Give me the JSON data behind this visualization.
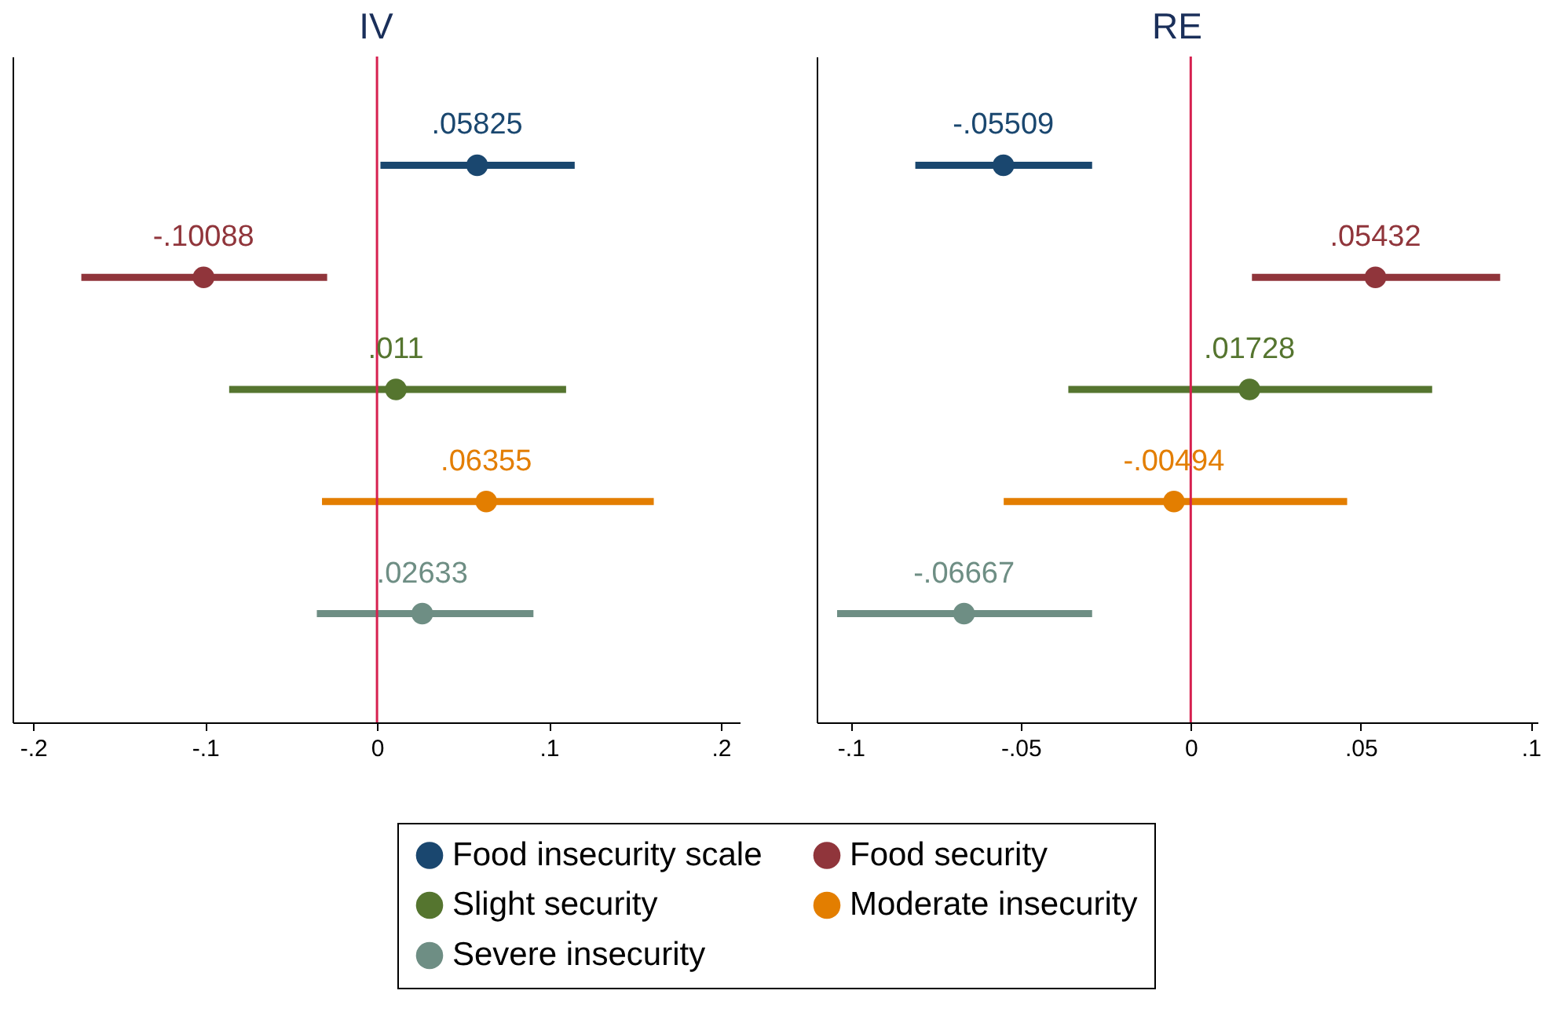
{
  "chart_data": [
    {
      "type": "scatter",
      "title": "IV",
      "orientation": "horizontal",
      "categories": [
        null,
        null,
        null,
        null,
        null
      ],
      "xlim": [
        -0.212,
        0.211
      ],
      "xticks": [
        {
          "value": -0.2,
          "label": "-.2"
        },
        {
          "value": -0.1,
          "label": "-.1"
        },
        0,
        {
          "value": 0.1,
          "label": ".1"
        },
        {
          "value": 0.2,
          "label": ".2"
        }
      ],
      "tick_labels": "x",
      "marker": "circle",
      "legend": "bottom",
      "grid": false,
      "ref_lines": [
        {
          "axis": "x",
          "value": 0,
          "color": "#d6204f"
        }
      ],
      "series": [
        {
          "name": "Food insecurity scale",
          "color": "#1a476f",
          "values": [
            0.05825,
            null,
            null,
            null,
            null
          ],
          "errors": [
            [
              0.002,
              0.115
            ],
            null,
            null,
            null,
            null
          ],
          "value_labels": [
            ".05825",
            null,
            null,
            null,
            null
          ]
        },
        {
          "name": "Food security",
          "color": "#90353b",
          "values": [
            null,
            -0.10088,
            null,
            null,
            null
          ],
          "errors": [
            null,
            [
              -0.172,
              -0.029
            ],
            null,
            null,
            null
          ],
          "value_labels": [
            null,
            "-.10088",
            null,
            null,
            null
          ]
        },
        {
          "name": "Slight security",
          "color": "#55752f",
          "values": [
            null,
            null,
            0.011,
            null,
            null
          ],
          "errors": [
            null,
            null,
            [
              -0.086,
              0.11
            ],
            null,
            null
          ],
          "value_labels": [
            null,
            null,
            ".011",
            null,
            null
          ]
        },
        {
          "name": "Moderate insecurity",
          "color": "#e37e00",
          "values": [
            null,
            null,
            null,
            0.06355,
            null
          ],
          "errors": [
            null,
            null,
            null,
            [
              -0.032,
              0.161
            ],
            null
          ],
          "value_labels": [
            null,
            null,
            null,
            ".06355",
            null
          ]
        },
        {
          "name": "Severe insecurity",
          "color": "#6e8e84",
          "values": [
            null,
            null,
            null,
            null,
            0.02633
          ],
          "errors": [
            null,
            null,
            null,
            null,
            [
              -0.035,
              0.091
            ]
          ],
          "value_labels": [
            null,
            null,
            null,
            null,
            ".02633"
          ]
        }
      ]
    },
    {
      "type": "scatter",
      "title": "RE",
      "orientation": "horizontal",
      "categories": [
        null,
        null,
        null,
        null,
        null
      ],
      "xlim": [
        -0.11,
        0.102
      ],
      "xticks": [
        {
          "value": -0.1,
          "label": "-.1"
        },
        {
          "value": -0.05,
          "label": "-.05"
        },
        0,
        {
          "value": 0.05,
          "label": ".05"
        },
        {
          "value": 0.1,
          "label": ".1"
        }
      ],
      "tick_labels": "x",
      "marker": "circle",
      "grid": false,
      "ref_lines": [
        {
          "axis": "x",
          "value": 0,
          "color": "#d6204f"
        }
      ],
      "series": [
        {
          "name": "Food insecurity scale",
          "color": "#1a476f",
          "values": [
            -0.05509,
            null,
            null,
            null,
            null
          ],
          "errors": [
            [
              -0.081,
              -0.029
            ],
            null,
            null,
            null,
            null
          ],
          "value_labels": [
            "-.05509",
            null,
            null,
            null,
            null
          ]
        },
        {
          "name": "Food security",
          "color": "#90353b",
          "values": [
            null,
            0.05432,
            null,
            null,
            null
          ],
          "errors": [
            null,
            [
              0.018,
              0.091
            ],
            null,
            null,
            null
          ],
          "value_labels": [
            null,
            ".05432",
            null,
            null,
            null
          ]
        },
        {
          "name": "Slight security",
          "color": "#55752f",
          "values": [
            null,
            null,
            0.01728,
            null,
            null
          ],
          "errors": [
            null,
            null,
            [
              -0.036,
              0.071
            ],
            null,
            null
          ],
          "value_labels": [
            null,
            null,
            ".01728",
            null,
            null
          ]
        },
        {
          "name": "Moderate insecurity",
          "color": "#e37e00",
          "values": [
            null,
            null,
            null,
            -0.00494,
            null
          ],
          "errors": [
            null,
            null,
            null,
            [
              -0.055,
              0.046
            ],
            null
          ],
          "value_labels": [
            null,
            null,
            null,
            "-.00494",
            null
          ]
        },
        {
          "name": "Severe insecurity",
          "color": "#6e8e84",
          "values": [
            null,
            null,
            null,
            null,
            -0.06667
          ],
          "errors": [
            null,
            null,
            null,
            null,
            [
              -0.104,
              -0.029
            ]
          ],
          "value_labels": [
            null,
            null,
            null,
            null,
            "-.06667"
          ]
        }
      ]
    }
  ]
}
